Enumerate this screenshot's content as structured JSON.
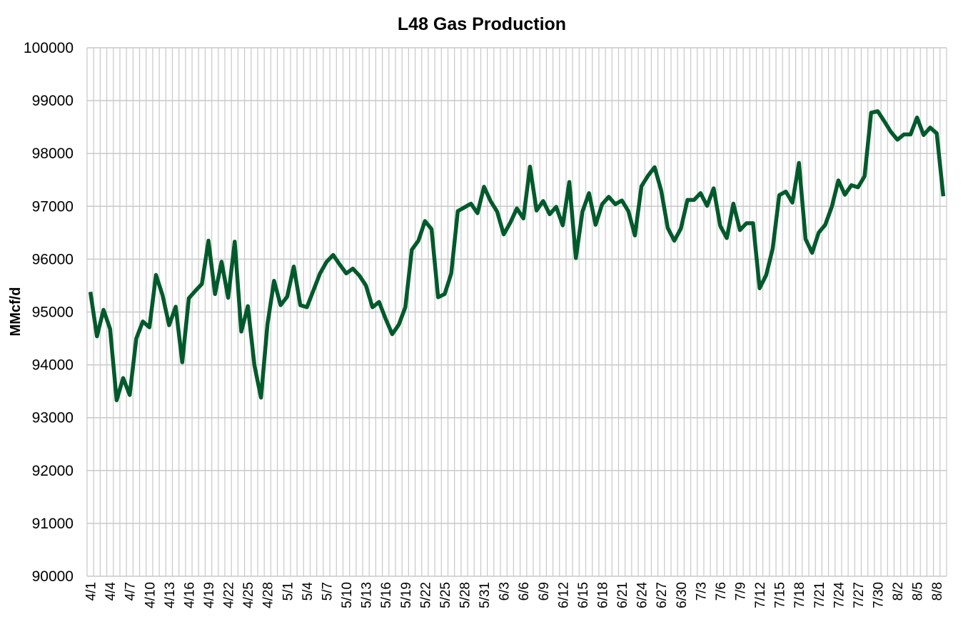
{
  "chart_data": {
    "type": "line",
    "title": "L48 Gas Production",
    "xlabel": "",
    "ylabel": "MMcf/d",
    "ylim": [
      90000,
      100000
    ],
    "yticks": [
      90000,
      91000,
      92000,
      93000,
      94000,
      95000,
      96000,
      97000,
      98000,
      99000,
      100000
    ],
    "grid": true,
    "legend": "none",
    "x_tick_every": 3,
    "line_color": "#005a2b",
    "grid_color": "#c8c8c8",
    "categories": [
      "4/1",
      "4/2",
      "4/3",
      "4/4",
      "4/5",
      "4/6",
      "4/7",
      "4/8",
      "4/9",
      "4/10",
      "4/11",
      "4/12",
      "4/13",
      "4/14",
      "4/15",
      "4/16",
      "4/17",
      "4/18",
      "4/19",
      "4/20",
      "4/21",
      "4/22",
      "4/23",
      "4/24",
      "4/25",
      "4/26",
      "4/27",
      "4/28",
      "4/29",
      "4/30",
      "5/1",
      "5/2",
      "5/3",
      "5/4",
      "5/5",
      "5/6",
      "5/7",
      "5/8",
      "5/9",
      "5/10",
      "5/11",
      "5/12",
      "5/13",
      "5/14",
      "5/15",
      "5/16",
      "5/17",
      "5/18",
      "5/19",
      "5/20",
      "5/21",
      "5/22",
      "5/23",
      "5/24",
      "5/25",
      "5/26",
      "5/27",
      "5/28",
      "5/29",
      "5/30",
      "5/31",
      "6/1",
      "6/2",
      "6/3",
      "6/4",
      "6/5",
      "6/6",
      "6/7",
      "6/8",
      "6/9",
      "6/10",
      "6/11",
      "6/12",
      "6/13",
      "6/14",
      "6/15",
      "6/16",
      "6/17",
      "6/18",
      "6/19",
      "6/20",
      "6/21",
      "6/22",
      "6/23",
      "6/24",
      "6/25",
      "6/26",
      "6/27",
      "6/28",
      "6/29",
      "6/30",
      "7/1",
      "7/2",
      "7/3",
      "7/4",
      "7/5",
      "7/6",
      "7/7",
      "7/8",
      "7/9",
      "7/10",
      "7/11",
      "7/12",
      "7/13",
      "7/14",
      "7/15",
      "7/16",
      "7/17",
      "7/18",
      "7/19",
      "7/20",
      "7/21",
      "7/22",
      "7/23",
      "7/24",
      "7/25",
      "7/26",
      "7/27",
      "7/28",
      "7/29",
      "7/30",
      "7/31",
      "8/1",
      "8/2",
      "8/3",
      "8/4",
      "8/5",
      "8/6",
      "8/7",
      "8/8",
      "8/9"
    ],
    "series": [
      {
        "name": "L48 Gas Production",
        "values": [
          95380,
          94540,
          95040,
          94680,
          93330,
          93750,
          93430,
          94500,
          94820,
          94710,
          95700,
          95320,
          94750,
          95100,
          94050,
          95260,
          95400,
          95530,
          96350,
          95340,
          95950,
          95270,
          96330,
          94630,
          95110,
          93990,
          93380,
          94770,
          95590,
          95130,
          95290,
          95860,
          95130,
          95090,
          95410,
          95730,
          95950,
          96080,
          95900,
          95730,
          95820,
          95690,
          95500,
          95090,
          95190,
          94870,
          94580,
          94760,
          95090,
          96180,
          96350,
          96720,
          96570,
          95280,
          95340,
          95730,
          96910,
          96980,
          97050,
          96870,
          97370,
          97100,
          96900,
          96470,
          96690,
          96960,
          96770,
          97750,
          96920,
          97100,
          96850,
          96990,
          96640,
          97460,
          96020,
          96900,
          97250,
          96650,
          97040,
          97180,
          97040,
          97110,
          96910,
          96450,
          97380,
          97580,
          97740,
          97300,
          96590,
          96350,
          96580,
          97120,
          97120,
          97250,
          97010,
          97340,
          96630,
          96400,
          97050,
          96550,
          96680,
          96680,
          95450,
          95700,
          96200,
          97210,
          97280,
          97070,
          97820,
          96380,
          96120,
          96500,
          96650,
          96990,
          97490,
          97220,
          97400,
          97360,
          97570,
          98770,
          98800,
          98610,
          98410,
          98260,
          98360,
          98360,
          98680,
          98350,
          98490,
          98380,
          97190
        ]
      }
    ]
  }
}
